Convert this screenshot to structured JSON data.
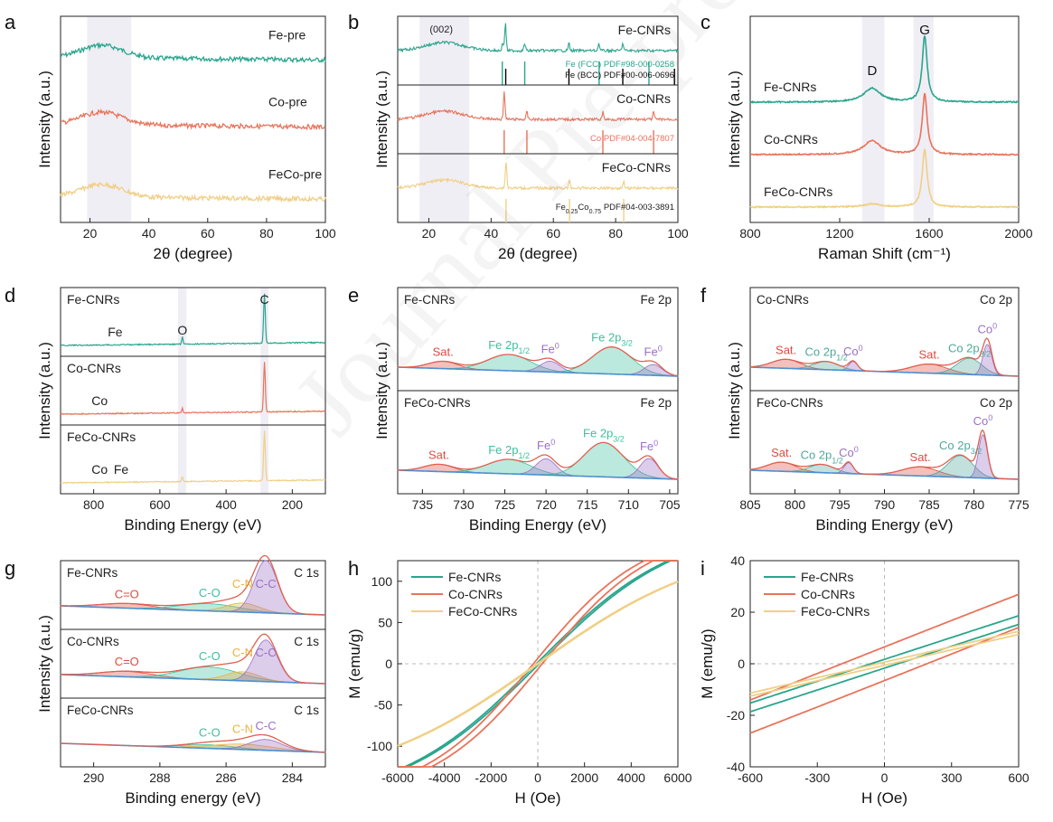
{
  "watermark": "Journal Pre-proof",
  "colors": {
    "fe": "#2aa58d",
    "co": "#e8735a",
    "feco": "#f0cf85",
    "sat": "#e04a3f",
    "fe2p": "#3fbf9d",
    "c0": "#9b6fc4",
    "cn": "#e9b33f",
    "co_peak": "#4fa89b",
    "base": "#4d8fd0"
  },
  "chart_data": [
    {
      "panel": "a",
      "type": "line",
      "xlabel": "2θ (degree)",
      "ylabel": "Intensity (a.u.)",
      "xlim": [
        10,
        100
      ],
      "xticks": [
        20,
        40,
        60,
        80,
        100
      ],
      "shade": [
        [
          19,
          34
        ]
      ],
      "series": [
        {
          "name": "Fe-pre",
          "label": "Fe-pre",
          "color": "fe",
          "offset": 3.2,
          "peak": 24
        },
        {
          "name": "Co-pre",
          "label": "Co-pre",
          "color": "co",
          "offset": 1.9,
          "peak": 24
        },
        {
          "name": "FeCo-pre",
          "label": "FeCo-pre",
          "color": "feco",
          "offset": 0.5,
          "peak": 24
        }
      ]
    },
    {
      "panel": "b",
      "type": "line",
      "xlabel": "2θ (degree)",
      "ylabel": "Intensity (a.u.)",
      "xlim": [
        10,
        100
      ],
      "xticks": [
        20,
        40,
        60,
        80,
        100
      ],
      "shade": [
        [
          17,
          33
        ]
      ],
      "annotation": "(002)",
      "subpanels": [
        {
          "name": "Fe-CNRs",
          "color": "fe",
          "peaks": [
            44.6,
            43.7,
            50.8,
            65.0,
            74.6,
            82.3
          ],
          "refs": [
            {
              "text": "Fe (FCC) PDF#98-000-0258",
              "color": "fe",
              "lines": [
                43.6,
                50.8,
                74.7,
                90.7
              ]
            },
            {
              "text": "Fe (BCC) PDF#00-006-0696",
              "color": "#000000",
              "lines": [
                44.7,
                65.0,
                82.3,
                98.9
              ]
            }
          ]
        },
        {
          "name": "Co-CNRs",
          "color": "co",
          "peaks": [
            44.2,
            51.5,
            75.9,
            92.2
          ],
          "refs": [
            {
              "text": "Co PDF#04-004-7807",
              "color": "co",
              "lines": [
                44.2,
                51.5,
                75.9,
                92.2
              ]
            }
          ]
        },
        {
          "name": "FeCo-CNRs",
          "color": "feco",
          "peaks": [
            44.8,
            65.2,
            82.6
          ],
          "refs": [
            {
              "text": "Fe0.25Co0.75 PDF#04-003-3891",
              "color": "feco",
              "lines": [
                44.8,
                65.2,
                82.6
              ]
            }
          ]
        }
      ]
    },
    {
      "panel": "c",
      "type": "line",
      "xlabel": "Raman Shift (cm⁻¹)",
      "ylabel": "Intensity (a.u.)",
      "xlim": [
        800,
        2000
      ],
      "xticks": [
        800,
        1200,
        1600,
        2000
      ],
      "shade": [
        [
          1300,
          1400
        ],
        [
          1530,
          1620
        ]
      ],
      "peak_labels": [
        {
          "text": "D",
          "x": 1345
        },
        {
          "text": "G",
          "x": 1580
        }
      ],
      "series": [
        {
          "name": "Fe-CNRs",
          "color": "fe",
          "D": 1345,
          "G": 1580,
          "D_height": 0.7,
          "G_height": 2.3
        },
        {
          "name": "Co-CNRs",
          "color": "co",
          "D": 1345,
          "G": 1580,
          "D_height": 0.7,
          "G_height": 2.1
        },
        {
          "name": "FeCo-CNRs",
          "color": "feco",
          "D": 1345,
          "G": 1580,
          "D_height": 0.15,
          "G_height": 2.0
        }
      ]
    },
    {
      "panel": "d",
      "type": "line",
      "xlabel": "Binding Energy (eV)",
      "ylabel": "Intensity (a.u.)",
      "xlim": [
        900,
        100
      ],
      "xticks": [
        800,
        600,
        400,
        200
      ],
      "shade": [
        [
          520,
          545
        ],
        [
          272,
          296
        ]
      ],
      "subpanels": [
        {
          "name": "Fe-CNRs",
          "color": "fe",
          "labels": [
            {
              "text": "Fe",
              "x": 735
            },
            {
              "text": "O",
              "x": 532
            },
            {
              "text": "C",
              "x": 284
            }
          ]
        },
        {
          "name": "Co-CNRs",
          "color": "co",
          "labels": [
            {
              "text": "Co",
              "x": 782
            }
          ]
        },
        {
          "name": "FeCo-CNRs",
          "color": "feco",
          "labels": [
            {
              "text": "Co",
              "x": 782
            },
            {
              "text": "Fe",
              "x": 717
            }
          ]
        }
      ]
    },
    {
      "panel": "e",
      "type": "xps",
      "xlabel": "Binding Energy (eV)",
      "ylabel": "Intensity (a.u.)",
      "xlim": [
        738,
        704
      ],
      "xticks": [
        735,
        730,
        725,
        720,
        715,
        710,
        705
      ],
      "subpanels": [
        {
          "name": "Fe-CNRs",
          "region": "Fe 2p",
          "peaks": [
            {
              "label": "Sat.",
              "center": 732.5,
              "color": "sat"
            },
            {
              "label": "Fe 2p1/2",
              "center": 724.5,
              "color": "fe2p"
            },
            {
              "label": "Fe0",
              "center": 719.5,
              "color": "c0"
            },
            {
              "label": "Fe 2p3/2",
              "center": 712.0,
              "color": "fe2p"
            },
            {
              "label": "Fe0",
              "center": 707.0,
              "color": "c0"
            }
          ]
        },
        {
          "name": "FeCo-CNRs",
          "region": "Fe 2p",
          "peaks": [
            {
              "label": "Sat.",
              "center": 733.0,
              "color": "sat"
            },
            {
              "label": "Fe 2p1/2",
              "center": 724.5,
              "color": "fe2p"
            },
            {
              "label": "Fe0",
              "center": 720.0,
              "color": "c0"
            },
            {
              "label": "Fe 2p3/2",
              "center": 713.0,
              "color": "fe2p"
            },
            {
              "label": "Fe0",
              "center": 707.5,
              "color": "c0"
            }
          ]
        }
      ]
    },
    {
      "panel": "f",
      "type": "xps",
      "xlabel": "Binding Energy (eV)",
      "ylabel": "Intensity (a.u.)",
      "xlim": [
        805,
        775
      ],
      "xticks": [
        805,
        800,
        795,
        790,
        785,
        780,
        775
      ],
      "subpanels": [
        {
          "name": "Co-CNRs",
          "region": "Co 2p",
          "peaks": [
            {
              "label": "Sat.",
              "center": 801.0,
              "color": "sat"
            },
            {
              "label": "Co 2p1/2",
              "center": 796.5,
              "color": "co_peak"
            },
            {
              "label": "Co0",
              "center": 793.5,
              "color": "c0"
            },
            {
              "label": "Sat.",
              "center": 785.0,
              "color": "sat"
            },
            {
              "label": "Co 2p3/2",
              "center": 780.5,
              "color": "co_peak"
            },
            {
              "label": "Co0",
              "center": 778.5,
              "color": "c0"
            }
          ]
        },
        {
          "name": "FeCo-CNRs",
          "region": "Co 2p",
          "peaks": [
            {
              "label": "Sat.",
              "center": 801.5,
              "color": "sat"
            },
            {
              "label": "Co 2p1/2",
              "center": 797.0,
              "color": "co_peak"
            },
            {
              "label": "Co0",
              "center": 794.0,
              "color": "c0"
            },
            {
              "label": "Sat.",
              "center": 786.0,
              "color": "sat"
            },
            {
              "label": "Co 2p3/2",
              "center": 781.5,
              "color": "co_peak"
            },
            {
              "label": "Co0",
              "center": 779.0,
              "color": "c0"
            }
          ]
        }
      ]
    },
    {
      "panel": "g",
      "type": "xps",
      "xlabel": "Binding energy (eV)",
      "ylabel": "Intensity (a.u.)",
      "xlim": [
        291,
        283
      ],
      "xticks": [
        290,
        288,
        286,
        284
      ],
      "subpanels": [
        {
          "name": "Fe-CNRs",
          "region": "C 1s",
          "peaks": [
            {
              "label": "C=O",
              "center": 289.0,
              "color": "sat"
            },
            {
              "label": "C-O",
              "center": 286.5,
              "color": "fe2p"
            },
            {
              "label": "C-N",
              "center": 285.5,
              "color": "cn"
            },
            {
              "label": "C-C",
              "center": 284.8,
              "color": "c0"
            }
          ]
        },
        {
          "name": "Co-CNRs",
          "region": "C 1s",
          "peaks": [
            {
              "label": "C=O",
              "center": 289.0,
              "color": "sat"
            },
            {
              "label": "C-O",
              "center": 286.5,
              "color": "fe2p"
            },
            {
              "label": "C-N",
              "center": 285.5,
              "color": "cn"
            },
            {
              "label": "C-C",
              "center": 284.8,
              "color": "c0"
            }
          ]
        },
        {
          "name": "FeCo-CNRs",
          "region": "C 1s",
          "peaks": [
            {
              "label": "C-O",
              "center": 286.5,
              "color": "fe2p"
            },
            {
              "label": "C-N",
              "center": 285.5,
              "color": "cn"
            },
            {
              "label": "C-C",
              "center": 284.8,
              "color": "c0"
            }
          ]
        }
      ]
    },
    {
      "panel": "h",
      "type": "line",
      "xlabel": "H (Oe)",
      "ylabel": "M (emu/g)",
      "xlim": [
        -6000,
        6000
      ],
      "ylim": [
        -125,
        125
      ],
      "xticks": [
        -6000,
        -4000,
        -2000,
        0,
        2000,
        4000,
        6000
      ],
      "yticks": [
        -100,
        -50,
        0,
        50,
        100
      ],
      "legend": "top-left",
      "series": [
        {
          "name": "Fe-CNRs",
          "color": "fe",
          "Ms": 170,
          "H0": 6000,
          "Hc": 60
        },
        {
          "name": "Co-CNRs",
          "color": "co",
          "Ms": 165,
          "H0": 4800,
          "Hc": 190
        },
        {
          "name": "FeCo-CNRs",
          "color": "feco",
          "Ms": 150,
          "H0": 7500,
          "Hc": 30
        }
      ]
    },
    {
      "panel": "i",
      "type": "line",
      "xlabel": "H (Oe)",
      "ylabel": "M (emu/g)",
      "xlim": [
        -600,
        600
      ],
      "ylim": [
        -40,
        40
      ],
      "xticks": [
        -600,
        -300,
        0,
        300,
        600
      ],
      "yticks": [
        -40,
        -20,
        0,
        20,
        40
      ],
      "legend": "top-left",
      "series": [
        {
          "name": "Fe-CNRs",
          "color": "fe",
          "Ms": 170,
          "H0": 6000,
          "Hc": 60
        },
        {
          "name": "Co-CNRs",
          "color": "co",
          "Ms": 165,
          "H0": 4800,
          "Hc": 190
        },
        {
          "name": "FeCo-CNRs",
          "color": "feco",
          "Ms": 150,
          "H0": 7500,
          "Hc": 30
        }
      ]
    }
  ]
}
